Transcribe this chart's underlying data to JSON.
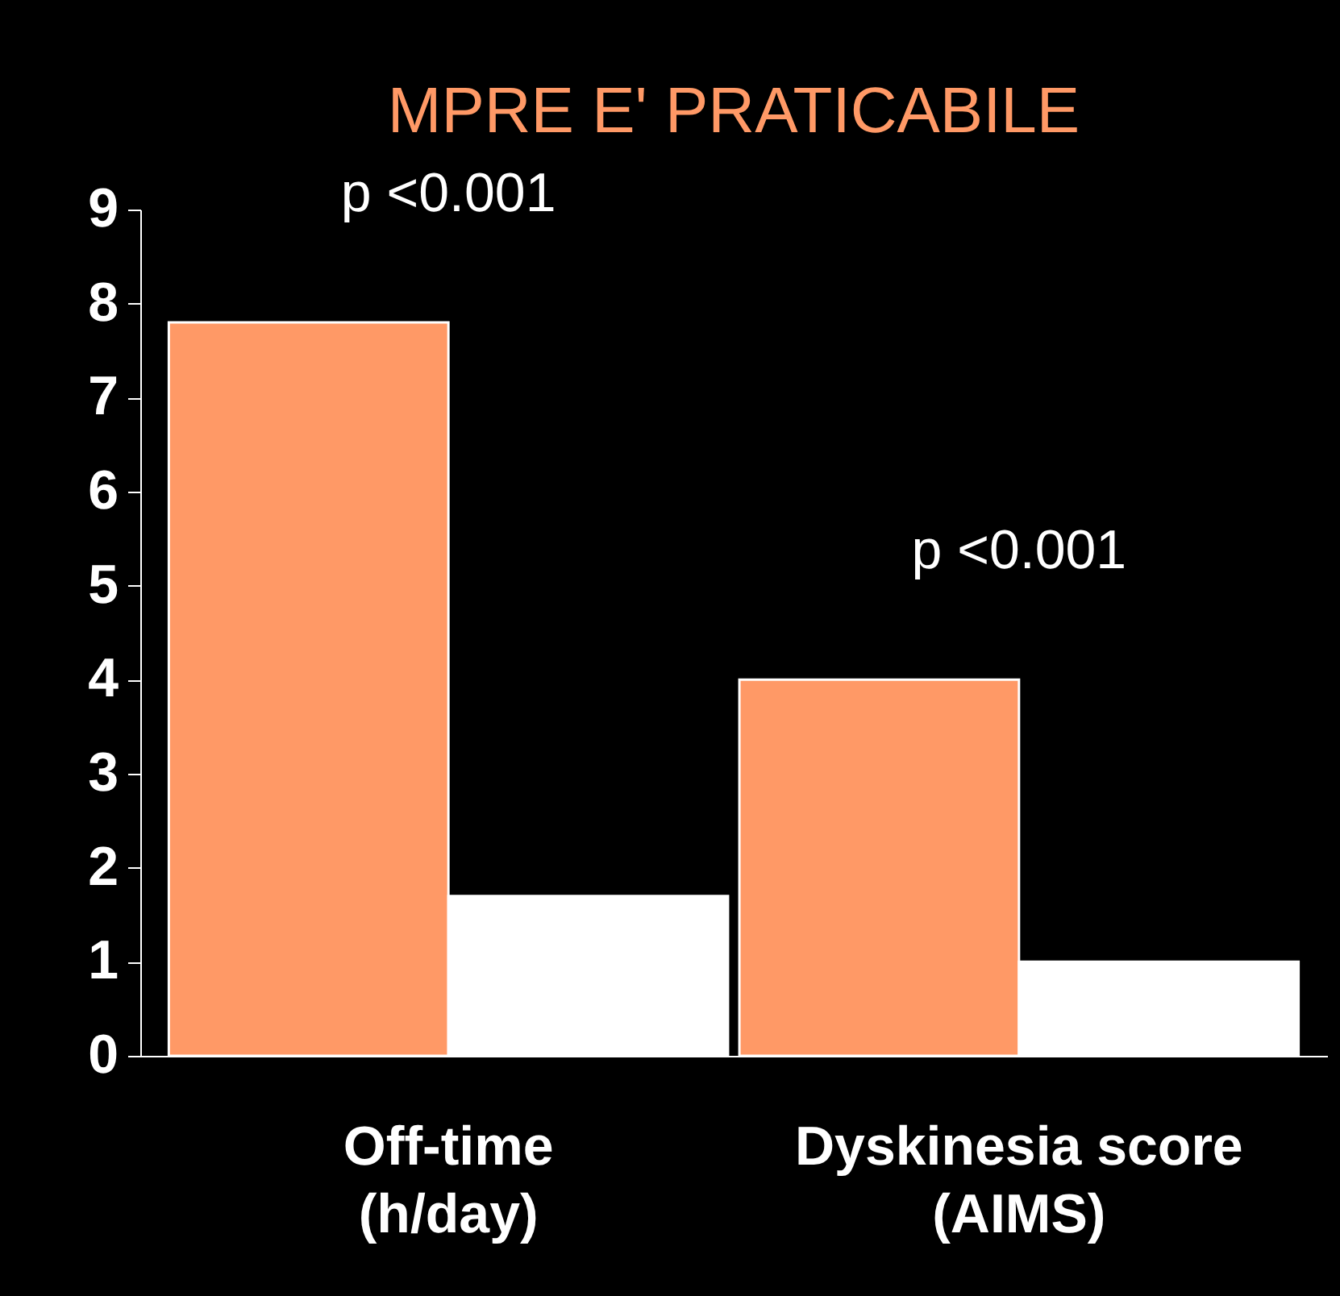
{
  "chart_data": {
    "type": "bar",
    "title": "MPRE E' PRATICABILE",
    "categories": [
      "Off-time (h/day)",
      "Dyskinesia score (AIMS)"
    ],
    "series": [
      {
        "color": "#ff9966",
        "values": [
          7.8,
          4.0
        ]
      },
      {
        "color": "#ffffff",
        "values": [
          1.7,
          1.0
        ]
      }
    ],
    "ylim": [
      0,
      9
    ],
    "yticks": [
      0,
      1,
      2,
      3,
      4,
      5,
      6,
      7,
      8,
      9
    ],
    "grid": false,
    "legend": false,
    "annotations": [
      "p <0.001",
      "p <0.001"
    ]
  }
}
